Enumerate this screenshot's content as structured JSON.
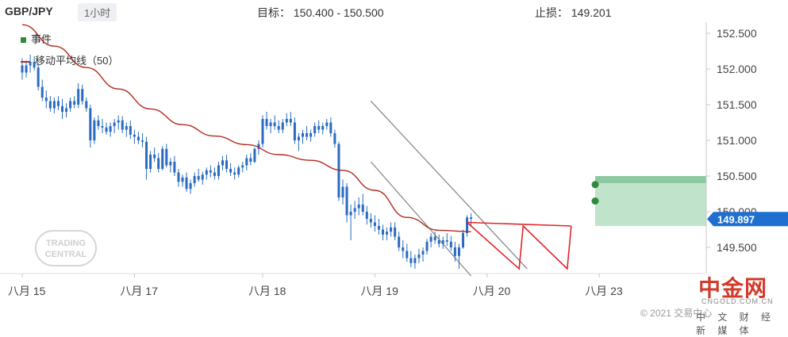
{
  "header": {
    "pair": "GBP/JPY",
    "timeframe": "1小时",
    "target": "目标： 150.400 - 150.500",
    "stop": "止损：  149.201"
  },
  "legend": {
    "events": "事件",
    "ma": "移动平均线（50）"
  },
  "colors": {
    "candles": "#2a6bbf",
    "ma": "#b22b1e",
    "channel": "#8a8a8a",
    "pattern": "#e0262b",
    "target_zone": "#bfe3cb",
    "target_band": "#8ec8a0",
    "marker": "#2e8b3d",
    "price_tag": "#1f6fd1"
  },
  "watermark": {
    "logo_text": "TRADING CENTRAL",
    "site_name": "中金网",
    "site_url": "CNGOLD.COM.CN",
    "tagline": "中 文 财 经 新 媒 体",
    "copyright": "© 2021 交易中心"
  },
  "chart_data": {
    "type": "candlestick",
    "y_axis": {
      "range": [
        149.1,
        152.7
      ],
      "ticks": [
        152.5,
        152.0,
        151.5,
        151.0,
        150.5,
        150.0,
        149.5
      ],
      "tick_labels": [
        "152.500",
        "152.000",
        "151.500",
        "151.000",
        "150.500",
        "150.000",
        "149.500"
      ]
    },
    "x_axis": {
      "labels": [
        "八月 15",
        "八月 17",
        "八月 18",
        "八月 19",
        "八月 20",
        "八月 23"
      ],
      "label_index": [
        0,
        28,
        60,
        88,
        116,
        144
      ]
    },
    "last_price": "149.897",
    "target_range": [
      150.4,
      150.5
    ],
    "target_zone_bottom": 149.8,
    "events_markers": [
      150.38,
      150.15
    ],
    "candles": [
      [
        152.05,
        152.15,
        151.85,
        151.95
      ],
      [
        151.95,
        152.12,
        151.88,
        152.05
      ],
      [
        152.05,
        152.2,
        151.95,
        152.1
      ],
      [
        152.1,
        152.18,
        151.98,
        152.02
      ],
      [
        152.02,
        152.08,
        151.7,
        151.75
      ],
      [
        151.75,
        151.85,
        151.55,
        151.6
      ],
      [
        151.6,
        151.7,
        151.45,
        151.55
      ],
      [
        151.55,
        151.62,
        151.4,
        151.45
      ],
      [
        151.45,
        151.6,
        151.38,
        151.55
      ],
      [
        151.55,
        151.62,
        151.42,
        151.48
      ],
      [
        151.48,
        151.58,
        151.3,
        151.4
      ],
      [
        151.4,
        151.52,
        151.32,
        151.45
      ],
      [
        151.45,
        151.6,
        151.4,
        151.55
      ],
      [
        151.55,
        151.62,
        151.45,
        151.5
      ],
      [
        151.5,
        151.8,
        151.45,
        151.72
      ],
      [
        151.72,
        151.78,
        151.5,
        151.55
      ],
      [
        151.55,
        151.6,
        151.4,
        151.45
      ],
      [
        151.45,
        151.5,
        150.9,
        151.0
      ],
      [
        151.0,
        151.32,
        150.95,
        151.28
      ],
      [
        151.28,
        151.35,
        151.15,
        151.2
      ],
      [
        151.2,
        151.3,
        151.1,
        151.18
      ],
      [
        151.18,
        151.25,
        151.08,
        151.12
      ],
      [
        151.12,
        151.25,
        151.05,
        151.2
      ],
      [
        151.2,
        151.3,
        151.1,
        151.25
      ],
      [
        151.25,
        151.35,
        151.15,
        151.28
      ],
      [
        151.28,
        151.34,
        151.1,
        151.15
      ],
      [
        151.15,
        151.25,
        151.05,
        151.2
      ],
      [
        151.2,
        151.28,
        151.02,
        151.08
      ],
      [
        151.08,
        151.15,
        150.95,
        151.05
      ],
      [
        151.05,
        151.12,
        150.95,
        151.0
      ],
      [
        151.0,
        151.1,
        150.9,
        150.98
      ],
      [
        150.98,
        151.05,
        150.45,
        150.6
      ],
      [
        150.6,
        150.85,
        150.55,
        150.8
      ],
      [
        150.8,
        150.9,
        150.7,
        150.75
      ],
      [
        150.75,
        150.82,
        150.55,
        150.6
      ],
      [
        150.6,
        150.92,
        150.58,
        150.88
      ],
      [
        150.88,
        150.95,
        150.62,
        150.65
      ],
      [
        150.65,
        150.75,
        150.55,
        150.7
      ],
      [
        150.7,
        150.78,
        150.5,
        150.55
      ],
      [
        150.55,
        150.6,
        150.35,
        150.42
      ],
      [
        150.42,
        150.52,
        150.35,
        150.48
      ],
      [
        150.48,
        150.55,
        150.28,
        150.32
      ],
      [
        150.32,
        150.45,
        150.25,
        150.4
      ],
      [
        150.4,
        150.55,
        150.35,
        150.5
      ],
      [
        150.5,
        150.6,
        150.42,
        150.45
      ],
      [
        150.45,
        150.56,
        150.38,
        150.52
      ],
      [
        150.52,
        150.62,
        150.45,
        150.58
      ],
      [
        150.58,
        150.65,
        150.48,
        150.55
      ],
      [
        150.55,
        150.62,
        150.45,
        150.5
      ],
      [
        150.5,
        150.7,
        150.45,
        150.65
      ],
      [
        150.65,
        150.78,
        150.58,
        150.72
      ],
      [
        150.72,
        150.8,
        150.55,
        150.6
      ],
      [
        150.6,
        150.68,
        150.5,
        150.55
      ],
      [
        150.55,
        150.62,
        150.45,
        150.52
      ],
      [
        150.52,
        150.65,
        150.48,
        150.62
      ],
      [
        150.62,
        150.7,
        150.55,
        150.65
      ],
      [
        150.65,
        150.8,
        150.58,
        150.75
      ],
      [
        150.75,
        150.82,
        150.65,
        150.7
      ],
      [
        150.7,
        150.9,
        150.68,
        150.88
      ],
      [
        150.88,
        151.0,
        150.8,
        150.95
      ],
      [
        150.95,
        151.35,
        150.9,
        151.3
      ],
      [
        151.3,
        151.4,
        151.15,
        151.2
      ],
      [
        151.2,
        151.3,
        151.1,
        151.25
      ],
      [
        151.25,
        151.35,
        151.15,
        151.2
      ],
      [
        151.2,
        151.28,
        151.1,
        151.15
      ],
      [
        151.15,
        151.3,
        151.1,
        151.25
      ],
      [
        151.25,
        151.38,
        151.2,
        151.3
      ],
      [
        151.3,
        151.4,
        151.2,
        151.25
      ],
      [
        151.25,
        151.32,
        150.95,
        151.0
      ],
      [
        151.0,
        151.1,
        150.85,
        151.05
      ],
      [
        151.05,
        151.15,
        150.95,
        151.1
      ],
      [
        151.1,
        151.2,
        151.0,
        151.05
      ],
      [
        151.05,
        151.15,
        150.98,
        151.1
      ],
      [
        151.1,
        151.25,
        151.05,
        151.2
      ],
      [
        151.2,
        151.28,
        151.1,
        151.15
      ],
      [
        151.15,
        151.25,
        151.08,
        151.2
      ],
      [
        151.2,
        151.3,
        151.15,
        151.25
      ],
      [
        151.25,
        151.32,
        151.05,
        151.1
      ],
      [
        151.1,
        151.15,
        150.9,
        150.95
      ],
      [
        150.95,
        150.98,
        150.15,
        150.2
      ],
      [
        150.2,
        150.45,
        150.1,
        150.35
      ],
      [
        150.35,
        150.4,
        149.85,
        149.95
      ],
      [
        149.95,
        150.1,
        149.6,
        150.0
      ],
      [
        150.0,
        150.15,
        149.9,
        150.05
      ],
      [
        150.05,
        150.2,
        149.95,
        150.1
      ],
      [
        150.1,
        150.25,
        149.95,
        150.0
      ],
      [
        150.0,
        150.08,
        149.82,
        149.9
      ],
      [
        149.9,
        149.98,
        149.78,
        149.85
      ],
      [
        149.85,
        149.95,
        149.72,
        149.8
      ],
      [
        149.8,
        149.9,
        149.68,
        149.75
      ],
      [
        149.75,
        149.82,
        149.6,
        149.68
      ],
      [
        149.68,
        149.78,
        149.6,
        149.72
      ],
      [
        149.72,
        149.85,
        149.65,
        149.78
      ],
      [
        149.78,
        149.85,
        149.6,
        149.65
      ],
      [
        149.65,
        149.72,
        149.45,
        149.5
      ],
      [
        149.5,
        149.6,
        149.35,
        149.45
      ],
      [
        149.45,
        149.55,
        149.3,
        149.35
      ],
      [
        149.35,
        149.45,
        149.22,
        149.28
      ],
      [
        149.28,
        149.4,
        149.2,
        149.35
      ],
      [
        149.35,
        149.48,
        149.28,
        149.4
      ],
      [
        149.4,
        149.5,
        149.3,
        149.45
      ],
      [
        149.45,
        149.62,
        149.4,
        149.58
      ],
      [
        149.58,
        149.7,
        149.5,
        149.65
      ],
      [
        149.65,
        149.72,
        149.55,
        149.6
      ],
      [
        149.6,
        149.68,
        149.5,
        149.55
      ],
      [
        149.55,
        149.65,
        149.48,
        149.6
      ],
      [
        149.6,
        149.7,
        149.52,
        149.58
      ],
      [
        149.58,
        149.66,
        149.45,
        149.5
      ],
      [
        149.5,
        149.58,
        149.3,
        149.38
      ],
      [
        149.38,
        149.55,
        149.2,
        149.5
      ],
      [
        149.5,
        149.75,
        149.48,
        149.7
      ],
      [
        149.7,
        149.95,
        149.65,
        149.92
      ],
      [
        149.92,
        149.98,
        149.8,
        149.9
      ]
    ],
    "ma50": [
      152.62,
      152.32,
      152.02,
      151.72,
      151.44,
      151.22,
      151.06,
      150.94,
      150.8,
      150.72,
      150.58,
      150.3,
      149.92,
      149.74,
      149.72
    ],
    "channel_upper": [
      [
        151.55,
        87
      ],
      [
        149.2,
        126
      ]
    ],
    "channel_lower": [
      [
        150.7,
        87
      ],
      [
        149.1,
        112
      ]
    ],
    "pattern_points": [
      [
        149.85,
        111
      ],
      [
        149.2,
        124
      ],
      [
        149.8,
        125
      ],
      [
        149.2,
        136
      ],
      [
        149.8,
        137
      ]
    ]
  }
}
